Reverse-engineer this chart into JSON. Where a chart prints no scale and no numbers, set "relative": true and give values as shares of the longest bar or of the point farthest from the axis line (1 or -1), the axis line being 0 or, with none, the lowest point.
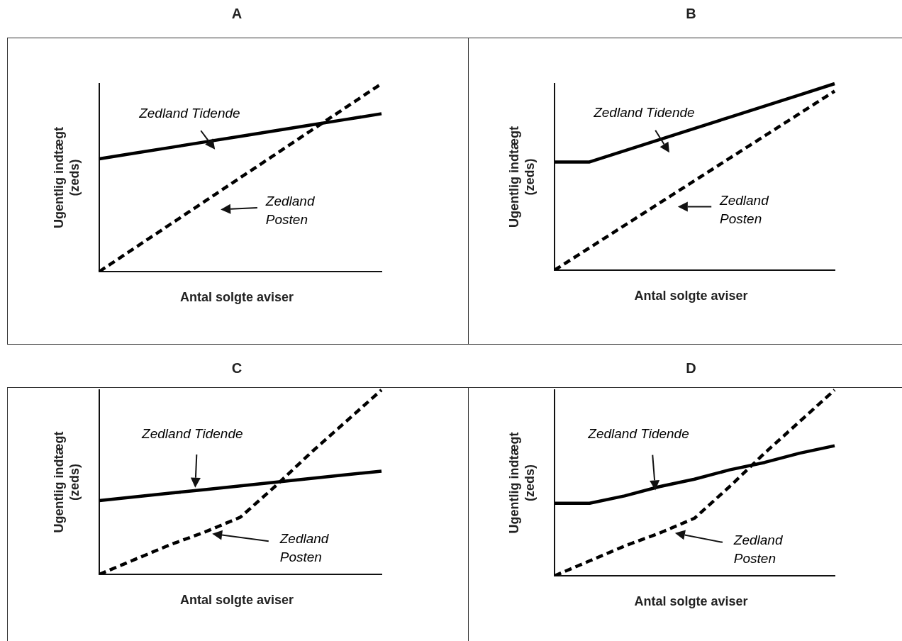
{
  "chart_data": [
    {
      "type": "line",
      "title": "A",
      "xlabel": "Antal solgte aviser",
      "ylabel": "Ugentlig indtægt (zeds)",
      "relative": true,
      "marker": "none",
      "tick_labels": false,
      "grid": false,
      "legend": false,
      "categories": [
        null,
        null,
        null,
        null,
        null,
        null,
        null,
        null,
        null
      ],
      "series": [
        {
          "name": "Zedland Tidende",
          "color": "#000000",
          "line_style": "solid",
          "values": [
            0.6,
            0.63,
            0.66,
            0.69,
            0.72,
            0.75,
            0.78,
            0.81,
            0.84
          ]
        },
        {
          "name": "Zedland Posten",
          "color": "#000000",
          "line_style": "dashed",
          "values": [
            0,
            0.125,
            0.25,
            0.375,
            0.5,
            0.625,
            0.75,
            0.875,
            1
          ]
        }
      ]
    },
    {
      "type": "line",
      "title": "B",
      "xlabel": "Antal solgte aviser",
      "ylabel": "Ugentlig indtægt (zeds)",
      "relative": true,
      "marker": "none",
      "tick_labels": false,
      "grid": false,
      "legend": false,
      "categories": [
        null,
        null,
        null,
        null,
        null,
        null,
        null,
        null,
        null
      ],
      "series": [
        {
          "name": "Zedland Tidende",
          "color": "#000000",
          "line_style": "solid",
          "values": [
            0.58,
            0.58,
            0.64,
            0.7,
            0.76,
            0.82,
            0.88,
            0.94,
            1
          ]
        },
        {
          "name": "Zedland Posten",
          "color": "#000000",
          "line_style": "dashed",
          "values": [
            0,
            0.12,
            0.24,
            0.36,
            0.48,
            0.6,
            0.72,
            0.84,
            0.96
          ]
        }
      ]
    },
    {
      "type": "line",
      "title": "C",
      "xlabel": "Antal solgte aviser",
      "ylabel": "Ugentlig indtægt (zeds)",
      "relative": true,
      "marker": "none",
      "tick_labels": false,
      "grid": false,
      "legend": false,
      "categories": [
        null,
        null,
        null,
        null,
        null,
        null,
        null,
        null,
        null
      ],
      "series": [
        {
          "name": "Zedland Tidende",
          "color": "#000000",
          "line_style": "solid",
          "values": [
            0.4,
            0.42,
            0.44,
            0.46,
            0.48,
            0.5,
            0.52,
            0.54,
            0.56
          ]
        },
        {
          "name": "Zedland Posten",
          "color": "#000000",
          "line_style": "dashed",
          "values": [
            0,
            0.08,
            0.16,
            0.23,
            0.31,
            0.48,
            0.66,
            0.83,
            1
          ]
        }
      ]
    },
    {
      "type": "line",
      "title": "D",
      "xlabel": "Antal solgte aviser",
      "ylabel": "Ugentlig indtægt (zeds)",
      "relative": true,
      "marker": "none",
      "tick_labels": false,
      "grid": false,
      "legend": false,
      "categories": [
        null,
        null,
        null,
        null,
        null,
        null,
        null,
        null,
        null
      ],
      "series": [
        {
          "name": "Zedland Tidende",
          "color": "#000000",
          "line_style": "solid",
          "values": [
            0.39,
            0.39,
            0.43,
            0.48,
            0.52,
            0.57,
            0.61,
            0.66,
            0.7
          ]
        },
        {
          "name": "Zedland Posten",
          "color": "#000000",
          "line_style": "dashed",
          "values": [
            0,
            0.08,
            0.16,
            0.23,
            0.31,
            0.48,
            0.66,
            0.83,
            1
          ]
        }
      ]
    }
  ]
}
